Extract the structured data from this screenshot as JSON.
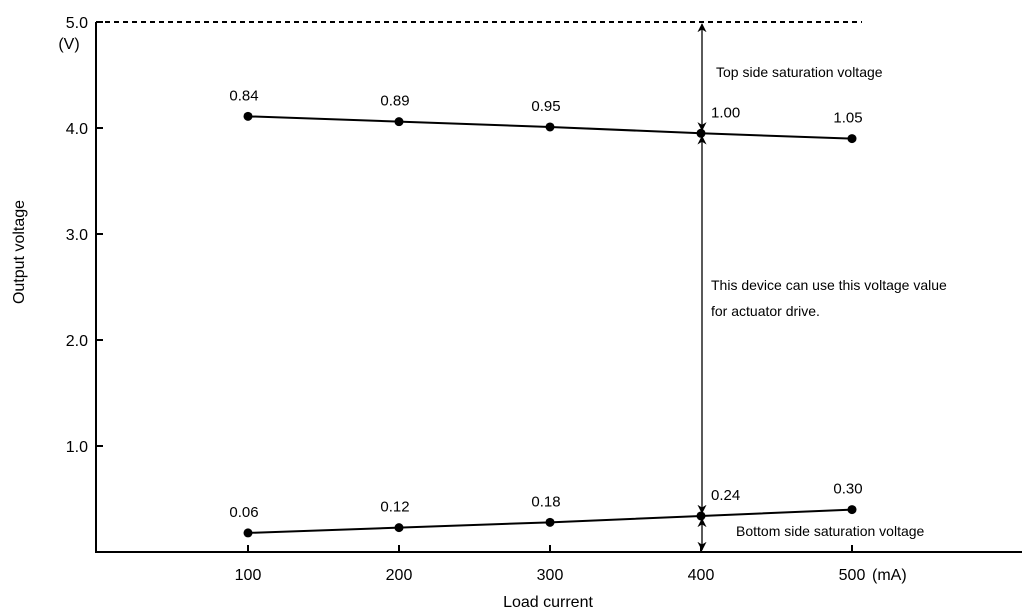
{
  "chart_data": {
    "type": "line",
    "xlabel": "Load current",
    "ylabel": "Output voltage",
    "x_unit": "(mA)",
    "y_unit": "(V)",
    "x": [
      100,
      200,
      300,
      400,
      500
    ],
    "xlim": [
      0,
      580
    ],
    "ylim": [
      0,
      5.0
    ],
    "x_tick_labels": [
      "100",
      "200",
      "300",
      "400",
      "500"
    ],
    "y_tick_labels": [
      "1.0",
      "2.0",
      "3.0",
      "4.0",
      "5.0"
    ],
    "y_ticks": [
      1.0,
      2.0,
      3.0,
      4.0,
      5.0
    ],
    "supply_voltage": 5.0,
    "grid": false,
    "series": [
      {
        "y": [
          4.11,
          4.06,
          4.01,
          3.95,
          3.9
        ],
        "labels": [
          "0.84",
          "0.89",
          "0.95",
          "1.00",
          "1.05"
        ]
      },
      {
        "y": [
          0.18,
          0.23,
          0.28,
          0.34,
          0.4
        ],
        "labels": [
          "0.06",
          "0.12",
          "0.18",
          "0.24",
          "0.30"
        ]
      }
    ],
    "annotations": {
      "top": "Top side saturation voltage",
      "usable_line1": "This device can use this voltage value",
      "usable_line2": "for actuator drive.",
      "bottom": "Bottom side saturation voltage"
    }
  }
}
